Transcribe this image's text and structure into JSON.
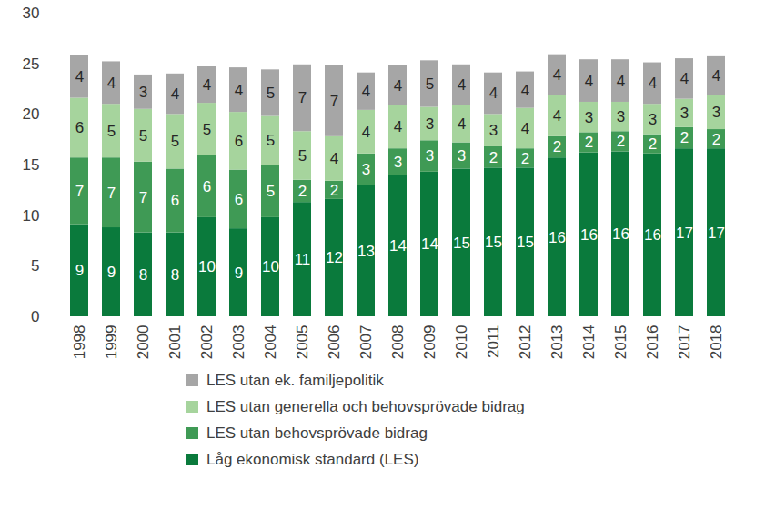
{
  "chart_data": {
    "type": "bar",
    "stacked": true,
    "data_labels": true,
    "grid": false,
    "categories": [
      "1998",
      "1999",
      "2000",
      "2001",
      "2002",
      "2003",
      "2004",
      "2005",
      "2006",
      "2007",
      "2008",
      "2009",
      "2010",
      "2011",
      "2012",
      "2013",
      "2014",
      "2015",
      "2016",
      "2017",
      "2018"
    ],
    "ylim": [
      0,
      30
    ],
    "yticks": [
      0,
      5,
      10,
      15,
      20,
      25,
      30
    ],
    "series": [
      {
        "name": "Låg ekonomisk standard (LES)",
        "color": "#0a7a3c",
        "values": [
          9.1,
          8.8,
          8.3,
          8.3,
          9.8,
          8.7,
          9.8,
          11.3,
          11.6,
          13.0,
          14.0,
          14.3,
          14.6,
          14.7,
          14.7,
          15.7,
          16.2,
          16.3,
          16.1,
          16.6,
          16.6
        ],
        "value_labels": [
          "9",
          "9",
          "8",
          "8",
          "10",
          "9",
          "10",
          "11",
          "12",
          "13",
          "14",
          "14",
          "15",
          "15",
          "15",
          "16",
          "16",
          "16",
          "16",
          "17",
          "17"
        ]
      },
      {
        "name": "LES utan behovsprövade bidrag",
        "color": "#3f9a55",
        "values": [
          6.6,
          6.9,
          7.0,
          6.3,
          6.1,
          5.8,
          5.2,
          2.2,
          1.8,
          3.1,
          2.6,
          3.1,
          2.6,
          2.1,
          1.9,
          2.1,
          2.0,
          2.0,
          1.9,
          2.1,
          1.9
        ],
        "value_labels": [
          "7",
          "7",
          "7",
          "6",
          "6",
          "6",
          "5",
          "2",
          "2",
          "3",
          "3",
          "3",
          "3",
          "2",
          "2",
          "2",
          "2",
          "2",
          "2",
          "2",
          "2"
        ]
      },
      {
        "name": "LES utan generella och behovsprövade bidrag",
        "color": "#a6d49d",
        "values": [
          5.9,
          5.3,
          5.2,
          5.4,
          5.2,
          5.7,
          4.8,
          4.8,
          4.4,
          4.3,
          4.3,
          3.3,
          3.7,
          3.2,
          4.0,
          4.1,
          3.0,
          2.9,
          3.0,
          2.8,
          3.4
        ],
        "value_labels": [
          "6",
          "5",
          "5",
          "5",
          "5",
          "6",
          "5",
          "5",
          "4",
          "4",
          "4",
          "3",
          "4",
          "3",
          "4",
          "4",
          "3",
          "3",
          "3",
          "3",
          "3"
        ]
      },
      {
        "name": "LES utan ek. familjepolitik",
        "color": "#a6a6a6",
        "values": [
          4.2,
          4.2,
          3.4,
          4.0,
          3.6,
          4.4,
          4.6,
          6.6,
          7.0,
          3.7,
          3.9,
          4.6,
          4.0,
          4.1,
          3.6,
          4.0,
          4.2,
          4.2,
          4.1,
          4.0,
          3.8
        ],
        "value_labels": [
          "4",
          "4",
          "3",
          "4",
          "4",
          "4",
          "5",
          "7",
          "7",
          "4",
          "4",
          "5",
          "4",
          "4",
          "4",
          "4",
          "4",
          "4",
          "4",
          "4",
          "4"
        ]
      }
    ]
  }
}
